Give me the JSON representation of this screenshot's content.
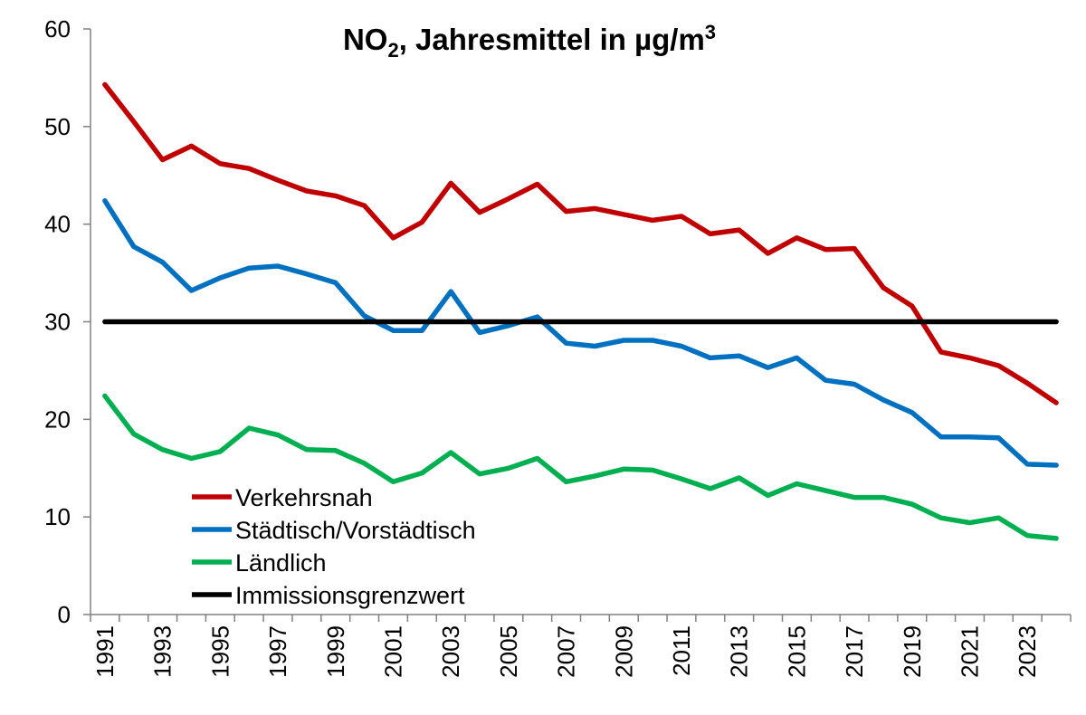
{
  "chart_data": {
    "type": "line",
    "title": {
      "main": "NO",
      "subscript": "2",
      "rest": ", Jahresmittel in µg/m",
      "superscript": "3"
    },
    "xlabel": "",
    "ylabel": "",
    "ylim": [
      0,
      60
    ],
    "yticks": [
      0,
      10,
      20,
      30,
      40,
      50,
      60
    ],
    "x": [
      1991,
      1992,
      1993,
      1994,
      1995,
      1996,
      1997,
      1998,
      1999,
      2000,
      2001,
      2002,
      2003,
      2004,
      2005,
      2006,
      2007,
      2008,
      2009,
      2010,
      2011,
      2012,
      2013,
      2014,
      2015,
      2016,
      2017,
      2018,
      2019,
      2020,
      2021,
      2022,
      2023,
      2024
    ],
    "xtick_labels": [
      "1991",
      "1993",
      "1995",
      "1997",
      "1999",
      "2001",
      "2003",
      "2005",
      "2007",
      "2009",
      "2011",
      "2013",
      "2015",
      "2017",
      "2019",
      "2021",
      "2023"
    ],
    "series": [
      {
        "name": "Verkehrsnah",
        "color": "#c00000",
        "values": [
          54.3,
          50.5,
          46.6,
          48.0,
          46.2,
          45.7,
          44.5,
          43.4,
          42.9,
          41.9,
          38.6,
          40.2,
          44.2,
          41.2,
          42.6,
          44.1,
          41.3,
          41.6,
          41.0,
          40.4,
          40.8,
          39.0,
          39.4,
          37.0,
          38.6,
          37.4,
          37.5,
          33.5,
          31.6,
          26.9,
          26.3,
          25.5,
          23.7,
          21.7
        ]
      },
      {
        "name": "Städtisch/Vorstädtisch",
        "color": "#0070c0",
        "values": [
          42.4,
          37.7,
          36.1,
          33.2,
          34.5,
          35.5,
          35.7,
          34.9,
          34.0,
          30.6,
          29.1,
          29.1,
          33.1,
          28.9,
          29.6,
          30.5,
          27.8,
          27.5,
          28.1,
          28.1,
          27.5,
          26.3,
          26.5,
          25.3,
          26.3,
          24.0,
          23.6,
          22.0,
          20.7,
          18.2,
          18.2,
          18.1,
          15.4,
          15.3
        ]
      },
      {
        "name": "Ländlich",
        "color": "#00b050",
        "values": [
          22.4,
          18.5,
          16.9,
          16.0,
          16.7,
          19.1,
          18.4,
          16.9,
          16.8,
          15.5,
          13.6,
          14.5,
          16.6,
          14.4,
          15.0,
          16.0,
          13.6,
          14.2,
          14.9,
          14.8,
          13.9,
          12.9,
          14.0,
          12.2,
          13.4,
          12.7,
          12.0,
          12.0,
          11.3,
          9.9,
          9.4,
          9.9,
          8.1,
          7.8
        ]
      },
      {
        "name": "Immissionsgrenzwert",
        "color": "#000000",
        "values": [
          30,
          30,
          30,
          30,
          30,
          30,
          30,
          30,
          30,
          30,
          30,
          30,
          30,
          30,
          30,
          30,
          30,
          30,
          30,
          30,
          30,
          30,
          30,
          30,
          30,
          30,
          30,
          30,
          30,
          30,
          30,
          30,
          30,
          30
        ]
      }
    ],
    "legend_position": "bottom-left",
    "grid": false
  }
}
